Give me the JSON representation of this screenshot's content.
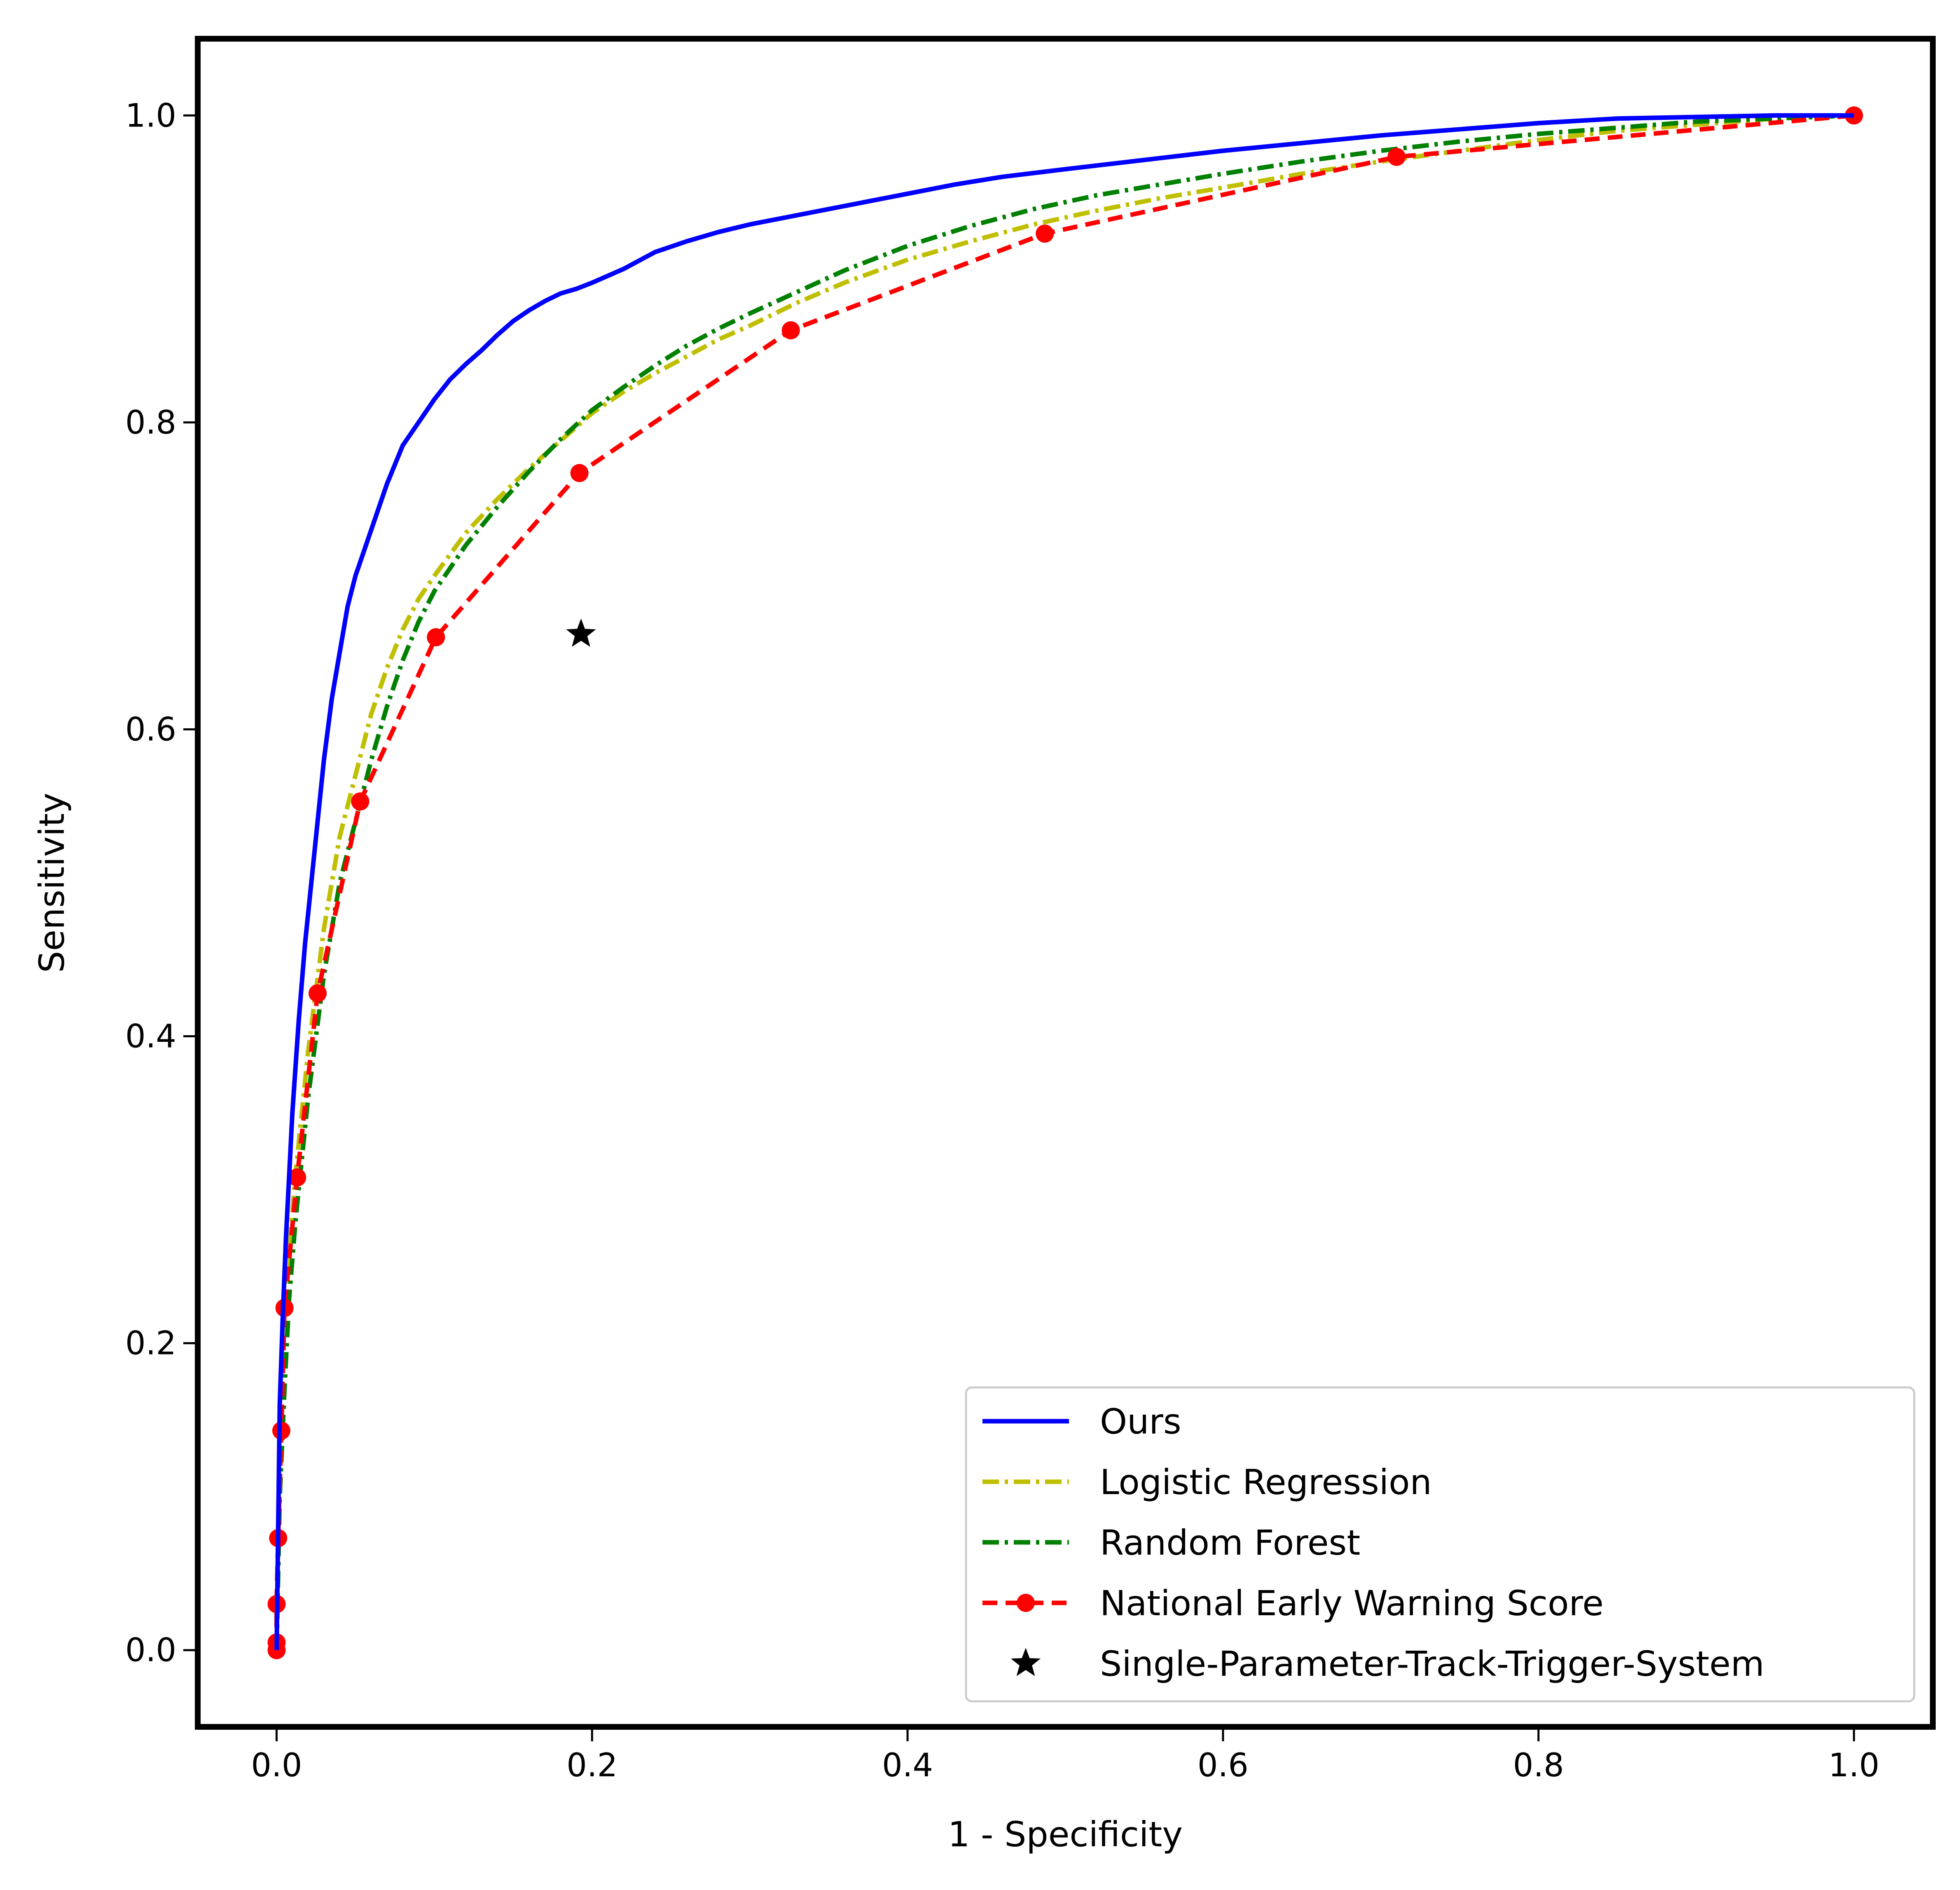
{
  "chart_data": {
    "type": "line",
    "title": "",
    "xlabel": "1 - Specificity",
    "ylabel": "Sensitivity",
    "xlim": [
      -0.05,
      1.05
    ],
    "ylim": [
      -0.05,
      1.05
    ],
    "xticks": [
      "0.0",
      "0.2",
      "0.4",
      "0.6",
      "0.8",
      "1.0"
    ],
    "yticks": [
      "0.0",
      "0.2",
      "0.4",
      "0.6",
      "0.8",
      "1.0"
    ],
    "grid": false,
    "legend_position": "lower-right",
    "series": [
      {
        "name": "Ours",
        "color": "#0000ff",
        "style": "solid",
        "x": [
          0.0,
          0.002,
          0.004,
          0.006,
          0.008,
          0.01,
          0.014,
          0.018,
          0.022,
          0.026,
          0.03,
          0.035,
          0.04,
          0.045,
          0.05,
          0.06,
          0.07,
          0.08,
          0.09,
          0.1,
          0.11,
          0.12,
          0.13,
          0.14,
          0.15,
          0.16,
          0.17,
          0.18,
          0.19,
          0.2,
          0.22,
          0.24,
          0.26,
          0.28,
          0.3,
          0.32,
          0.34,
          0.36,
          0.38,
          0.4,
          0.43,
          0.46,
          0.5,
          0.55,
          0.6,
          0.65,
          0.7,
          0.75,
          0.8,
          0.85,
          0.9,
          0.95,
          1.0
        ],
        "y": [
          0.0,
          0.16,
          0.22,
          0.27,
          0.31,
          0.35,
          0.41,
          0.46,
          0.5,
          0.54,
          0.58,
          0.62,
          0.65,
          0.68,
          0.7,
          0.73,
          0.76,
          0.785,
          0.8,
          0.815,
          0.828,
          0.838,
          0.847,
          0.857,
          0.866,
          0.873,
          0.879,
          0.884,
          0.887,
          0.891,
          0.9,
          0.911,
          0.918,
          0.924,
          0.929,
          0.933,
          0.937,
          0.941,
          0.945,
          0.949,
          0.955,
          0.96,
          0.965,
          0.971,
          0.977,
          0.982,
          0.987,
          0.991,
          0.995,
          0.998,
          0.999,
          1.0,
          1.0
        ]
      },
      {
        "name": "Logistic Regression",
        "color": "#bfbf00",
        "style": "dashdot",
        "x": [
          0.0,
          0.002,
          0.005,
          0.008,
          0.012,
          0.016,
          0.02,
          0.025,
          0.03,
          0.04,
          0.05,
          0.06,
          0.07,
          0.08,
          0.09,
          0.1,
          0.12,
          0.14,
          0.16,
          0.18,
          0.2,
          0.22,
          0.24,
          0.26,
          0.28,
          0.3,
          0.33,
          0.36,
          0.4,
          0.44,
          0.48,
          0.52,
          0.56,
          0.6,
          0.65,
          0.7,
          0.75,
          0.8,
          0.85,
          0.9,
          0.95,
          1.0
        ],
        "y": [
          0.0,
          0.12,
          0.2,
          0.26,
          0.31,
          0.35,
          0.39,
          0.43,
          0.47,
          0.53,
          0.57,
          0.61,
          0.64,
          0.665,
          0.685,
          0.7,
          0.728,
          0.75,
          0.77,
          0.788,
          0.806,
          0.82,
          0.832,
          0.843,
          0.854,
          0.863,
          0.878,
          0.891,
          0.906,
          0.918,
          0.929,
          0.938,
          0.946,
          0.953,
          0.962,
          0.97,
          0.977,
          0.984,
          0.99,
          0.994,
          0.998,
          1.0
        ]
      },
      {
        "name": "Random Forest",
        "color": "#008000",
        "style": "dashdot",
        "x": [
          0.0,
          0.002,
          0.005,
          0.008,
          0.012,
          0.016,
          0.02,
          0.025,
          0.03,
          0.04,
          0.05,
          0.06,
          0.07,
          0.08,
          0.09,
          0.1,
          0.12,
          0.14,
          0.16,
          0.18,
          0.2,
          0.22,
          0.24,
          0.26,
          0.28,
          0.3,
          0.33,
          0.36,
          0.4,
          0.44,
          0.48,
          0.52,
          0.56,
          0.6,
          0.65,
          0.7,
          0.75,
          0.8,
          0.85,
          0.9,
          0.95,
          1.0
        ],
        "y": [
          0.0,
          0.1,
          0.17,
          0.23,
          0.28,
          0.32,
          0.36,
          0.4,
          0.44,
          0.5,
          0.54,
          0.58,
          0.615,
          0.645,
          0.67,
          0.69,
          0.72,
          0.745,
          0.768,
          0.789,
          0.808,
          0.823,
          0.837,
          0.85,
          0.861,
          0.871,
          0.885,
          0.899,
          0.915,
          0.928,
          0.939,
          0.948,
          0.955,
          0.962,
          0.97,
          0.977,
          0.983,
          0.988,
          0.992,
          0.996,
          0.998,
          1.0
        ]
      },
      {
        "name": "National Early Warning Score",
        "color": "#ff0000",
        "style": "dashed",
        "markers": true,
        "x": [
          0.0,
          0.0,
          0.0,
          0.001,
          0.003,
          0.005,
          0.013,
          0.026,
          0.053,
          0.101,
          0.192,
          0.326,
          0.487,
          0.71,
          1.0
        ],
        "y": [
          0.0,
          0.005,
          0.03,
          0.073,
          0.143,
          0.223,
          0.308,
          0.428,
          0.553,
          0.66,
          0.767,
          0.86,
          0.923,
          0.973,
          1.0
        ]
      },
      {
        "name": "Single-Parameter-Track-Trigger-System",
        "color": "#000000",
        "style": "marker-only",
        "marker": "star",
        "x": [
          0.193
        ],
        "y": [
          0.662
        ]
      }
    ]
  }
}
